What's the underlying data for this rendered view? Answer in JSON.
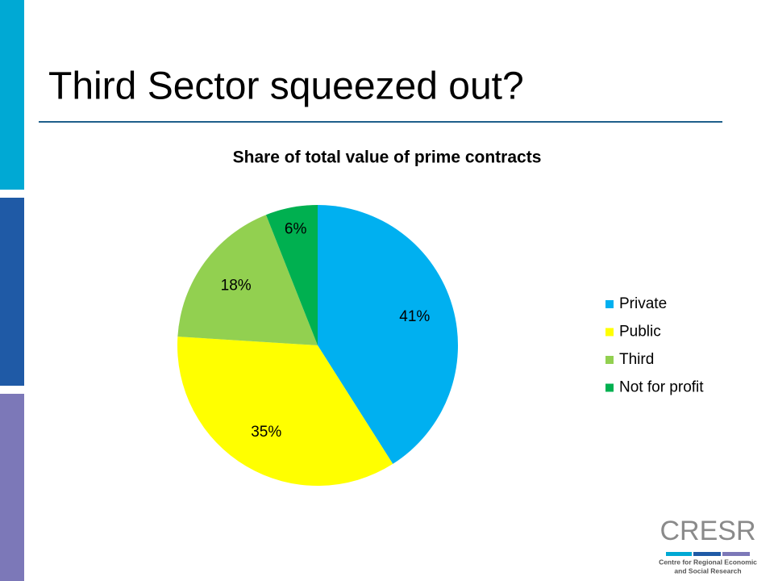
{
  "slide_title": "Third Sector squeezed out?",
  "chart_data": {
    "type": "pie",
    "title": "Share of total value of prime contracts",
    "categories": [
      "Private",
      "Public",
      "Third",
      "Not for profit"
    ],
    "values": [
      41,
      35,
      18,
      6
    ],
    "value_labels": [
      "41%",
      "35%",
      "18%",
      "6%"
    ],
    "colors": [
      "#00b0f0",
      "#ffff00",
      "#92d050",
      "#00b050"
    ],
    "legend": "right"
  },
  "logo": {
    "name": "CRESR",
    "lines": [
      "Centre for Regional Economic",
      "and Social Research"
    ]
  }
}
